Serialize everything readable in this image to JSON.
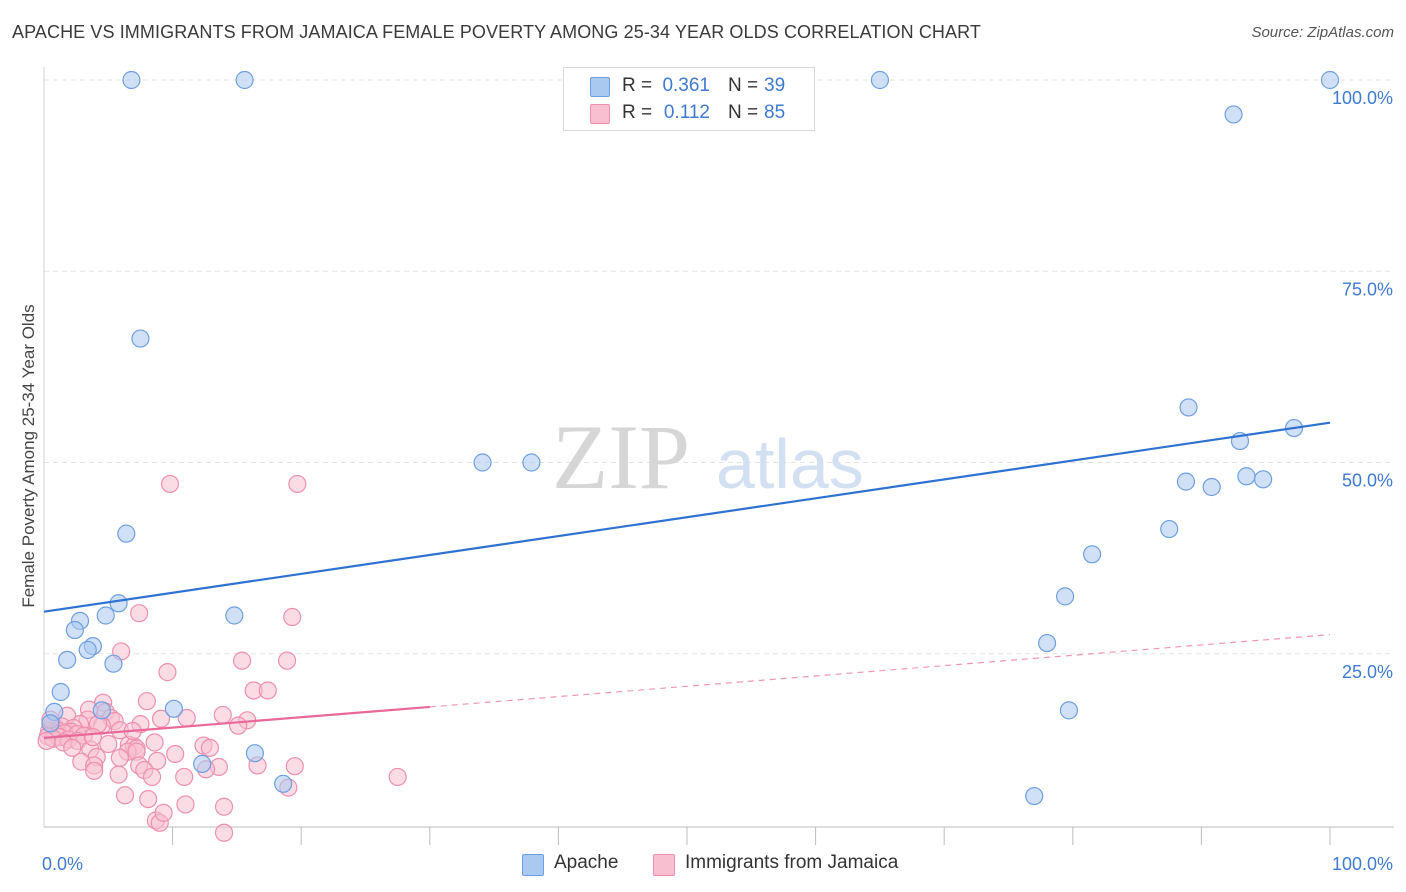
{
  "header": {
    "title": "APACHE VS IMMIGRANTS FROM JAMAICA FEMALE POVERTY AMONG 25-34 YEAR OLDS CORRELATION CHART",
    "source": "Source: ZipAtlas.com"
  },
  "legend_stats": {
    "r_label": "R =",
    "n_label": "N =",
    "rows": [
      {
        "r": "0.361",
        "n": "39"
      },
      {
        "r": "0.112",
        "n": "85"
      }
    ]
  },
  "colors": {
    "apache_fill": "#aac9f0",
    "apache_stroke": "#6f9fe0",
    "apache_line": "#2f72d0",
    "jamaica_fill": "#f7bfd0",
    "jamaica_stroke": "#ee8fae",
    "jamaica_line": "#e8699a",
    "grid": "#e4e4e4",
    "tick_text": "#3f7ad1",
    "watermark": "#d9d9d9"
  },
  "chart_data": {
    "type": "scatter",
    "title": "APACHE VS IMMIGRANTS FROM JAMAICA FEMALE POVERTY AMONG 25-34 YEAR OLDS CORRELATION CHART",
    "xlabel": "",
    "ylabel": "Female Poverty Among 25-34 Year Olds",
    "xlim": [
      0,
      100
    ],
    "ylim": [
      0,
      100
    ],
    "x_tick_labels": [
      "0.0%",
      "100.0%"
    ],
    "y_tick_labels": [
      "25.0%",
      "50.0%",
      "75.0%",
      "100.0%"
    ],
    "y_ticks": [
      25,
      50,
      75,
      100
    ],
    "grid": true,
    "legend_position": "bottom",
    "watermark": {
      "part1": "ZIP",
      "part2": "atlas"
    },
    "series": [
      {
        "name": "Apache",
        "r": 0.361,
        "n": 39,
        "trend": {
          "x0": 0,
          "y0": 30.5,
          "x1": 100,
          "y1": 55.2,
          "solid_to": 100
        },
        "points": [
          [
            6.8,
            100
          ],
          [
            15.6,
            100
          ],
          [
            65,
            100
          ],
          [
            100,
            100
          ],
          [
            92.5,
            95.5
          ],
          [
            7.5,
            66.2
          ],
          [
            97.2,
            54.5
          ],
          [
            89,
            57.2
          ],
          [
            93,
            52.8
          ],
          [
            93.5,
            48.2
          ],
          [
            94.8,
            47.8
          ],
          [
            88.8,
            47.5
          ],
          [
            90.8,
            46.8
          ],
          [
            34.1,
            50
          ],
          [
            37.9,
            50
          ],
          [
            6.4,
            40.7
          ],
          [
            87.5,
            41.3
          ],
          [
            81.5,
            38
          ],
          [
            79.4,
            32.5
          ],
          [
            5.8,
            31.6
          ],
          [
            14.8,
            30
          ],
          [
            4.8,
            30
          ],
          [
            2.8,
            29.3
          ],
          [
            2.4,
            28.1
          ],
          [
            3.8,
            26
          ],
          [
            3.4,
            25.5
          ],
          [
            1.8,
            24.2
          ],
          [
            5.4,
            23.7
          ],
          [
            78,
            26.4
          ],
          [
            1.3,
            20
          ],
          [
            0.8,
            17.4
          ],
          [
            4.5,
            17.6
          ],
          [
            10.1,
            17.8
          ],
          [
            79.7,
            17.6
          ],
          [
            0.5,
            15.9
          ],
          [
            16.4,
            12
          ],
          [
            12.3,
            10.6
          ],
          [
            18.6,
            8
          ],
          [
            77,
            6.4
          ]
        ]
      },
      {
        "name": "Immigrants from Jamaica",
        "r": 0.112,
        "n": 85,
        "trend": {
          "x0": 0,
          "y0": 14,
          "x1": 100,
          "y1": 27.5,
          "solid_to": 30
        },
        "points": [
          [
            9.8,
            47.2
          ],
          [
            19.7,
            47.2
          ],
          [
            7.4,
            30.3
          ],
          [
            19.3,
            29.8
          ],
          [
            6,
            25.3
          ],
          [
            15.4,
            24.1
          ],
          [
            18.9,
            24.1
          ],
          [
            9.6,
            22.6
          ],
          [
            16.3,
            20.2
          ],
          [
            17.4,
            20.2
          ],
          [
            4.6,
            18.6
          ],
          [
            8,
            18.8
          ],
          [
            3.5,
            17.7
          ],
          [
            4.8,
            17.4
          ],
          [
            13.9,
            17
          ],
          [
            1.8,
            16.9
          ],
          [
            5.2,
            16.6
          ],
          [
            9.1,
            16.5
          ],
          [
            11.1,
            16.6
          ],
          [
            15.8,
            16.3
          ],
          [
            3.4,
            16.4
          ],
          [
            5.5,
            16.2
          ],
          [
            7.5,
            15.8
          ],
          [
            2.8,
            15.8
          ],
          [
            4.5,
            15.6
          ],
          [
            0.6,
            15.6
          ],
          [
            1.4,
            15.5
          ],
          [
            2.3,
            15.3
          ],
          [
            15.1,
            15.6
          ],
          [
            5.9,
            15
          ],
          [
            1,
            15
          ],
          [
            0.4,
            14.9
          ],
          [
            2.1,
            14.8
          ],
          [
            0.9,
            14.6
          ],
          [
            1.6,
            14.6
          ],
          [
            2.6,
            14.5
          ],
          [
            3.1,
            14.3
          ],
          [
            0.3,
            14.2
          ],
          [
            1.2,
            14.1
          ],
          [
            0.7,
            13.9
          ],
          [
            1.9,
            13.8
          ],
          [
            2.6,
            13.6
          ],
          [
            0.2,
            13.6
          ],
          [
            5,
            13.2
          ],
          [
            6.6,
            13.1
          ],
          [
            7,
            12.9
          ],
          [
            7.2,
            12.6
          ],
          [
            12.4,
            13
          ],
          [
            3.6,
            12.5
          ],
          [
            6.5,
            12.2
          ],
          [
            7.2,
            12.2
          ],
          [
            10.2,
            11.9
          ],
          [
            4.1,
            11.5
          ],
          [
            5.9,
            11.4
          ],
          [
            8.8,
            11
          ],
          [
            2.9,
            10.9
          ],
          [
            3.9,
            10.4
          ],
          [
            7.4,
            10.4
          ],
          [
            13.6,
            10.2
          ],
          [
            16.6,
            10.4
          ],
          [
            19.5,
            10.3
          ],
          [
            3.9,
            9.7
          ],
          [
            7.8,
            9.8
          ],
          [
            12.6,
            9.9
          ],
          [
            5.8,
            9.2
          ],
          [
            8.4,
            8.9
          ],
          [
            10.9,
            8.9
          ],
          [
            27.5,
            8.9
          ],
          [
            19,
            7.5
          ],
          [
            6.3,
            6.5
          ],
          [
            8.1,
            6
          ],
          [
            11,
            5.3
          ],
          [
            14,
            5
          ],
          [
            8.7,
            3.2
          ],
          [
            9,
            2.9
          ],
          [
            14,
            1.6
          ],
          [
            9.3,
            4.2
          ],
          [
            4.2,
            15.8
          ],
          [
            6.9,
            14.9
          ],
          [
            3.8,
            14.1
          ],
          [
            1.5,
            13.4
          ],
          [
            2.2,
            12.7
          ],
          [
            0.5,
            16.4
          ],
          [
            8.6,
            13.4
          ],
          [
            12.9,
            12.7
          ]
        ]
      }
    ]
  },
  "bottom_legend": [
    {
      "label": "Apache"
    },
    {
      "label": "Immigrants from Jamaica"
    }
  ]
}
